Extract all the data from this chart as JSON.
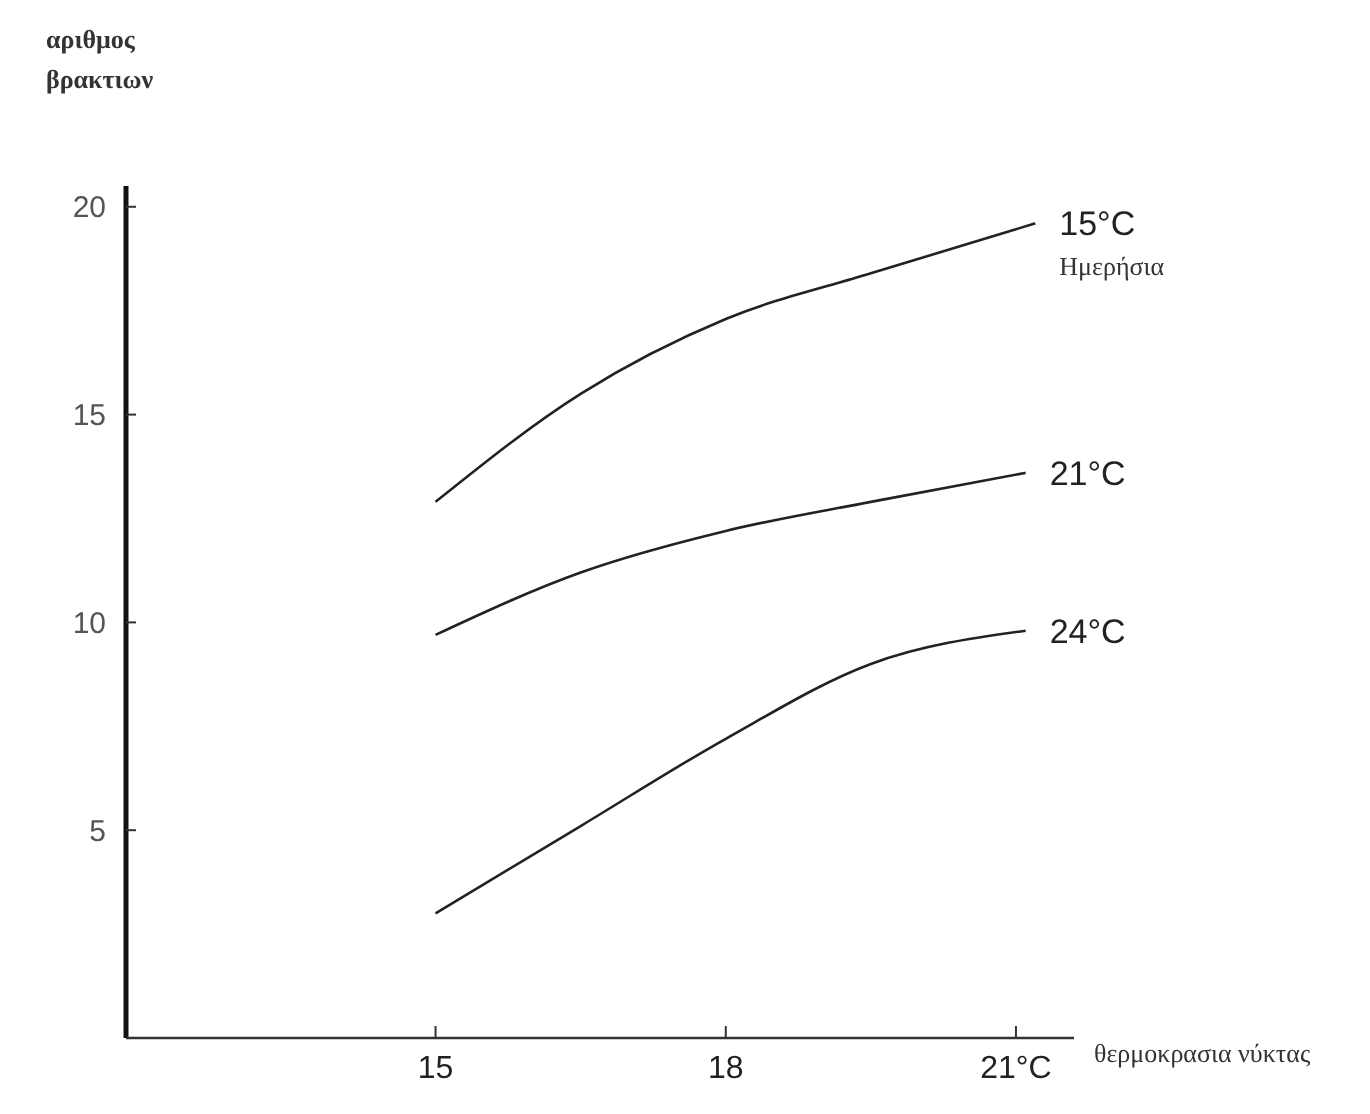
{
  "chart_data": {
    "type": "line",
    "ylabel": "αριθμος βρακτιων",
    "xlabel": "θερμοκρασια νύκτας",
    "xlim": [
      11.8,
      21.6
    ],
    "ylim": [
      0,
      20.5
    ],
    "xticks": [
      15,
      18,
      {
        "value": 21,
        "label": "21°C"
      }
    ],
    "yticks": [
      5,
      10,
      15,
      20
    ],
    "marker": "none",
    "line_style": "solid",
    "legend": false,
    "grid": false,
    "series": [
      {
        "name": "15°C",
        "color": "#222222",
        "x": [
          15,
          16.5,
          18,
          19.5,
          21.2
        ],
        "values": [
          12.9,
          15.5,
          17.3,
          18.4,
          19.6
        ]
      },
      {
        "name": "21°C",
        "color": "#222222",
        "x": [
          15,
          16.5,
          18,
          19.5,
          21.1
        ],
        "values": [
          9.7,
          11.2,
          12.2,
          12.9,
          13.6
        ]
      },
      {
        "name": "24°C",
        "color": "#222222",
        "x": [
          15,
          16.5,
          18,
          19.5,
          21.1
        ],
        "values": [
          3.0,
          5.1,
          7.2,
          9.0,
          9.8
        ]
      }
    ],
    "annotations": [
      "Ημερήσια"
    ]
  }
}
